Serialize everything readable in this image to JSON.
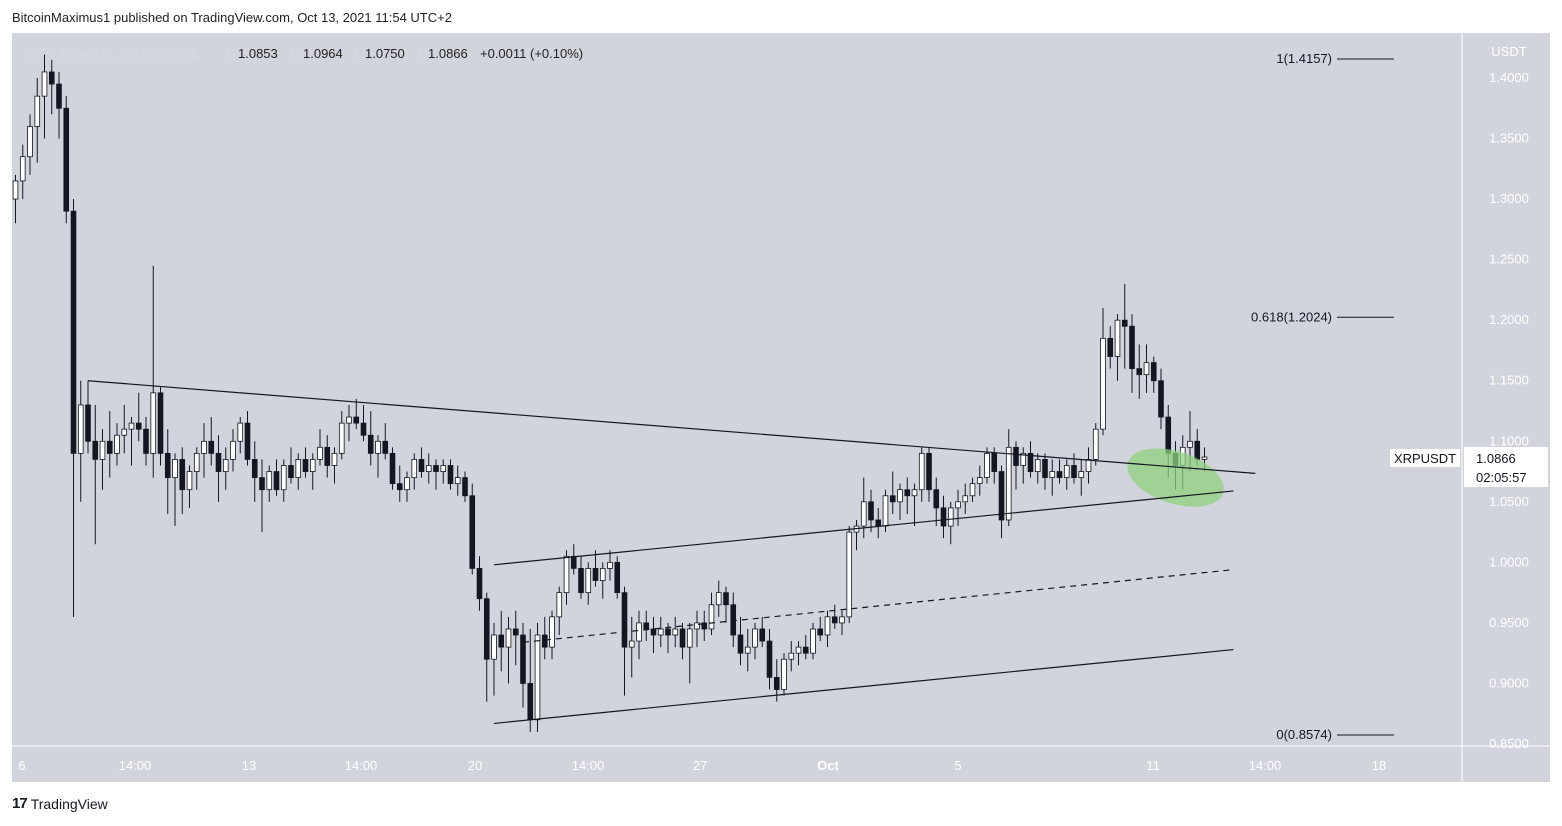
{
  "attribution": "BitcoinMaximus1 published on TradingView.com, Oct 13, 2021 11:54 UTC+2",
  "brand": {
    "mark": "17",
    "name": "TradingView"
  },
  "legend": {
    "symbol_text": "XRP / TetherUS, 6h, BINANCE",
    "o_label": "O",
    "o_value": "1.0853",
    "h_label": "H",
    "h_value": "1.0964",
    "l_label": "L",
    "l_value": "1.0750",
    "c_label": "C",
    "c_value": "1.0866",
    "change": "+0.0011 (+0.10%)"
  },
  "chart_data": {
    "type": "candlestick",
    "currency": "USDT",
    "ylim": [
      0.85,
      1.42
    ],
    "y_ticks": [
      "1.4000",
      "1.3500",
      "1.3000",
      "1.2500",
      "1.2000",
      "1.1500",
      "1.1000",
      "1.0500",
      "1.0000",
      "0.9500",
      "0.9000",
      "0.8500"
    ],
    "x_ticks": [
      "6",
      "14:00",
      "13",
      "14:00",
      "20",
      "14:00",
      "27",
      "Oct",
      "5",
      "11",
      "14:00",
      "18"
    ],
    "price_tag": {
      "symbol": "XRPUSDT",
      "price": "1.0866",
      "countdown": "02:05:57"
    },
    "fib_levels": [
      {
        "label": "1(1.4157)",
        "value": 1.4157
      },
      {
        "label": "0.618(1.2024)",
        "value": 1.2024
      },
      {
        "label": "0(0.8574)",
        "value": 0.8574
      }
    ],
    "candles": [
      [
        1.3,
        1.32,
        1.28,
        1.315
      ],
      [
        1.315,
        1.345,
        1.3,
        1.335
      ],
      [
        1.335,
        1.37,
        1.32,
        1.36
      ],
      [
        1.36,
        1.4,
        1.33,
        1.385
      ],
      [
        1.385,
        1.42,
        1.35,
        1.405
      ],
      [
        1.405,
        1.415,
        1.37,
        1.395
      ],
      [
        1.395,
        1.405,
        1.35,
        1.375
      ],
      [
        1.375,
        1.385,
        1.28,
        1.29
      ],
      [
        1.29,
        1.3,
        0.955,
        1.09
      ],
      [
        1.09,
        1.15,
        1.05,
        1.13
      ],
      [
        1.13,
        1.15,
        1.09,
        1.1
      ],
      [
        1.1,
        1.13,
        1.015,
        1.085
      ],
      [
        1.085,
        1.11,
        1.06,
        1.1
      ],
      [
        1.1,
        1.125,
        1.07,
        1.09
      ],
      [
        1.09,
        1.115,
        1.08,
        1.105
      ],
      [
        1.105,
        1.13,
        1.09,
        1.11
      ],
      [
        1.11,
        1.12,
        1.08,
        1.115
      ],
      [
        1.115,
        1.14,
        1.1,
        1.11
      ],
      [
        1.11,
        1.12,
        1.08,
        1.09
      ],
      [
        1.09,
        1.245,
        1.07,
        1.14
      ],
      [
        1.14,
        1.145,
        1.08,
        1.09
      ],
      [
        1.09,
        1.11,
        1.04,
        1.07
      ],
      [
        1.07,
        1.09,
        1.03,
        1.085
      ],
      [
        1.085,
        1.095,
        1.04,
        1.06
      ],
      [
        1.06,
        1.08,
        1.045,
        1.075
      ],
      [
        1.075,
        1.095,
        1.06,
        1.09
      ],
      [
        1.09,
        1.115,
        1.07,
        1.1
      ],
      [
        1.1,
        1.12,
        1.08,
        1.09
      ],
      [
        1.09,
        1.105,
        1.05,
        1.075
      ],
      [
        1.075,
        1.095,
        1.06,
        1.085
      ],
      [
        1.085,
        1.11,
        1.075,
        1.1
      ],
      [
        1.1,
        1.12,
        1.09,
        1.115
      ],
      [
        1.115,
        1.125,
        1.08,
        1.085
      ],
      [
        1.085,
        1.1,
        1.05,
        1.07
      ],
      [
        1.07,
        1.085,
        1.025,
        1.06
      ],
      [
        1.06,
        1.08,
        1.05,
        1.075
      ],
      [
        1.075,
        1.085,
        1.055,
        1.06
      ],
      [
        1.06,
        1.085,
        1.05,
        1.08
      ],
      [
        1.08,
        1.095,
        1.065,
        1.07
      ],
      [
        1.07,
        1.09,
        1.06,
        1.085
      ],
      [
        1.085,
        1.095,
        1.07,
        1.075
      ],
      [
        1.075,
        1.09,
        1.06,
        1.085
      ],
      [
        1.085,
        1.11,
        1.08,
        1.095
      ],
      [
        1.095,
        1.105,
        1.07,
        1.08
      ],
      [
        1.08,
        1.095,
        1.065,
        1.09
      ],
      [
        1.09,
        1.125,
        1.085,
        1.115
      ],
      [
        1.115,
        1.13,
        1.1,
        1.12
      ],
      [
        1.12,
        1.135,
        1.11,
        1.115
      ],
      [
        1.115,
        1.13,
        1.1,
        1.105
      ],
      [
        1.105,
        1.125,
        1.08,
        1.09
      ],
      [
        1.09,
        1.105,
        1.07,
        1.1
      ],
      [
        1.1,
        1.115,
        1.085,
        1.09
      ],
      [
        1.09,
        1.095,
        1.06,
        1.065
      ],
      [
        1.065,
        1.08,
        1.05,
        1.06
      ],
      [
        1.06,
        1.075,
        1.05,
        1.07
      ],
      [
        1.07,
        1.09,
        1.06,
        1.085
      ],
      [
        1.085,
        1.095,
        1.07,
        1.075
      ],
      [
        1.075,
        1.09,
        1.065,
        1.08
      ],
      [
        1.08,
        1.085,
        1.06,
        1.075
      ],
      [
        1.075,
        1.085,
        1.065,
        1.08
      ],
      [
        1.08,
        1.085,
        1.06,
        1.065
      ],
      [
        1.065,
        1.08,
        1.055,
        1.07
      ],
      [
        1.07,
        1.075,
        1.05,
        1.055
      ],
      [
        1.055,
        1.065,
        0.99,
        0.995
      ],
      [
        0.995,
        1.005,
        0.96,
        0.97
      ],
      [
        0.97,
        0.975,
        0.885,
        0.92
      ],
      [
        0.92,
        0.95,
        0.89,
        0.94
      ],
      [
        0.94,
        0.96,
        0.91,
        0.93
      ],
      [
        0.93,
        0.955,
        0.9,
        0.945
      ],
      [
        0.945,
        0.96,
        0.915,
        0.94
      ],
      [
        0.94,
        0.95,
        0.88,
        0.9
      ],
      [
        0.9,
        0.945,
        0.86,
        0.87
      ],
      [
        0.87,
        0.95,
        0.86,
        0.94
      ],
      [
        0.94,
        0.955,
        0.92,
        0.93
      ],
      [
        0.93,
        0.96,
        0.92,
        0.955
      ],
      [
        0.955,
        0.98,
        0.94,
        0.975
      ],
      [
        0.975,
        1.01,
        0.965,
        1.005
      ],
      [
        1.005,
        1.015,
        0.99,
        0.995
      ],
      [
        0.995,
        1.005,
        0.97,
        0.975
      ],
      [
        0.975,
        1.0,
        0.965,
        0.995
      ],
      [
        0.995,
        1.01,
        0.98,
        0.985
      ],
      [
        0.985,
        1.0,
        0.97,
        0.995
      ],
      [
        0.995,
        1.01,
        0.985,
        1.0
      ],
      [
        1.0,
        1.005,
        0.97,
        0.975
      ],
      [
        0.975,
        0.98,
        0.89,
        0.93
      ],
      [
        0.93,
        0.955,
        0.905,
        0.935
      ],
      [
        0.935,
        0.96,
        0.92,
        0.95
      ],
      [
        0.95,
        0.96,
        0.935,
        0.945
      ],
      [
        0.945,
        0.955,
        0.925,
        0.94
      ],
      [
        0.94,
        0.955,
        0.93,
        0.945
      ],
      [
        0.945,
        0.95,
        0.925,
        0.94
      ],
      [
        0.94,
        0.955,
        0.93,
        0.945
      ],
      [
        0.945,
        0.95,
        0.92,
        0.93
      ],
      [
        0.93,
        0.95,
        0.9,
        0.945
      ],
      [
        0.945,
        0.96,
        0.93,
        0.95
      ],
      [
        0.95,
        0.96,
        0.935,
        0.945
      ],
      [
        0.945,
        0.975,
        0.94,
        0.965
      ],
      [
        0.965,
        0.985,
        0.955,
        0.975
      ],
      [
        0.975,
        0.98,
        0.95,
        0.965
      ],
      [
        0.965,
        0.975,
        0.93,
        0.94
      ],
      [
        0.94,
        0.955,
        0.915,
        0.925
      ],
      [
        0.925,
        0.945,
        0.91,
        0.93
      ],
      [
        0.93,
        0.95,
        0.92,
        0.945
      ],
      [
        0.945,
        0.955,
        0.93,
        0.935
      ],
      [
        0.935,
        0.945,
        0.895,
        0.905
      ],
      [
        0.905,
        0.92,
        0.885,
        0.895
      ],
      [
        0.895,
        0.925,
        0.89,
        0.92
      ],
      [
        0.92,
        0.935,
        0.91,
        0.925
      ],
      [
        0.925,
        0.935,
        0.915,
        0.93
      ],
      [
        0.93,
        0.94,
        0.92,
        0.925
      ],
      [
        0.925,
        0.95,
        0.92,
        0.945
      ],
      [
        0.945,
        0.955,
        0.935,
        0.94
      ],
      [
        0.94,
        0.96,
        0.93,
        0.955
      ],
      [
        0.955,
        0.965,
        0.945,
        0.95
      ],
      [
        0.95,
        0.96,
        0.94,
        0.955
      ],
      [
        0.955,
        1.03,
        0.95,
        1.025
      ],
      [
        1.025,
        1.035,
        1.01,
        1.03
      ],
      [
        1.03,
        1.07,
        1.02,
        1.05
      ],
      [
        1.05,
        1.06,
        1.025,
        1.035
      ],
      [
        1.035,
        1.045,
        1.02,
        1.03
      ],
      [
        1.03,
        1.06,
        1.025,
        1.055
      ],
      [
        1.055,
        1.075,
        1.04,
        1.05
      ],
      [
        1.05,
        1.065,
        1.035,
        1.06
      ],
      [
        1.06,
        1.07,
        1.04,
        1.055
      ],
      [
        1.055,
        1.065,
        1.03,
        1.06
      ],
      [
        1.06,
        1.095,
        1.05,
        1.09
      ],
      [
        1.09,
        1.095,
        1.05,
        1.06
      ],
      [
        1.06,
        1.07,
        1.03,
        1.045
      ],
      [
        1.045,
        1.055,
        1.02,
        1.03
      ],
      [
        1.03,
        1.05,
        1.015,
        1.045
      ],
      [
        1.045,
        1.06,
        1.03,
        1.05
      ],
      [
        1.05,
        1.065,
        1.04,
        1.055
      ],
      [
        1.055,
        1.07,
        1.05,
        1.065
      ],
      [
        1.065,
        1.08,
        1.055,
        1.07
      ],
      [
        1.07,
        1.095,
        1.065,
        1.09
      ],
      [
        1.09,
        1.095,
        1.065,
        1.075
      ],
      [
        1.075,
        1.08,
        1.02,
        1.035
      ],
      [
        1.035,
        1.11,
        1.03,
        1.095
      ],
      [
        1.095,
        1.1,
        1.06,
        1.08
      ],
      [
        1.08,
        1.095,
        1.065,
        1.09
      ],
      [
        1.09,
        1.1,
        1.07,
        1.075
      ],
      [
        1.075,
        1.09,
        1.065,
        1.085
      ],
      [
        1.085,
        1.09,
        1.06,
        1.07
      ],
      [
        1.07,
        1.085,
        1.055,
        1.075
      ],
      [
        1.075,
        1.085,
        1.065,
        1.07
      ],
      [
        1.07,
        1.085,
        1.06,
        1.08
      ],
      [
        1.08,
        1.09,
        1.065,
        1.07
      ],
      [
        1.07,
        1.085,
        1.055,
        1.075
      ],
      [
        1.075,
        1.095,
        1.065,
        1.085
      ],
      [
        1.085,
        1.115,
        1.08,
        1.11
      ],
      [
        1.11,
        1.21,
        1.105,
        1.185
      ],
      [
        1.185,
        1.195,
        1.16,
        1.17
      ],
      [
        1.17,
        1.205,
        1.15,
        1.2
      ],
      [
        1.2,
        1.23,
        1.16,
        1.195
      ],
      [
        1.195,
        1.205,
        1.14,
        1.16
      ],
      [
        1.16,
        1.18,
        1.135,
        1.155
      ],
      [
        1.155,
        1.18,
        1.14,
        1.165
      ],
      [
        1.165,
        1.17,
        1.14,
        1.15
      ],
      [
        1.15,
        1.16,
        1.11,
        1.12
      ],
      [
        1.12,
        1.13,
        1.07,
        1.09
      ],
      [
        1.09,
        1.1,
        1.06,
        1.08
      ],
      [
        1.08,
        1.105,
        1.06,
        1.095
      ],
      [
        1.095,
        1.125,
        1.075,
        1.1
      ],
      [
        1.1,
        1.11,
        1.08,
        1.085
      ],
      [
        1.085,
        1.095,
        1.075,
        1.087
      ]
    ],
    "trendlines": [
      {
        "name": "descending-resistance",
        "style": "solid",
        "from": [
          10,
          1.15
        ],
        "to": [
          171,
          1.0735
        ]
      },
      {
        "name": "channel-top",
        "style": "solid",
        "from": [
          66,
          0.998
        ],
        "to": [
          168,
          1.059
        ]
      },
      {
        "name": "channel-middle",
        "style": "dashed",
        "from": [
          70,
          0.934
        ],
        "to": [
          168,
          0.994
        ]
      },
      {
        "name": "channel-bottom",
        "style": "solid",
        "from": [
          66,
          0.867
        ],
        "to": [
          168,
          0.928
        ]
      }
    ],
    "highlight": {
      "name": "support-zone",
      "center": [
        160,
        1.07
      ],
      "color": "#8fd17f"
    }
  }
}
